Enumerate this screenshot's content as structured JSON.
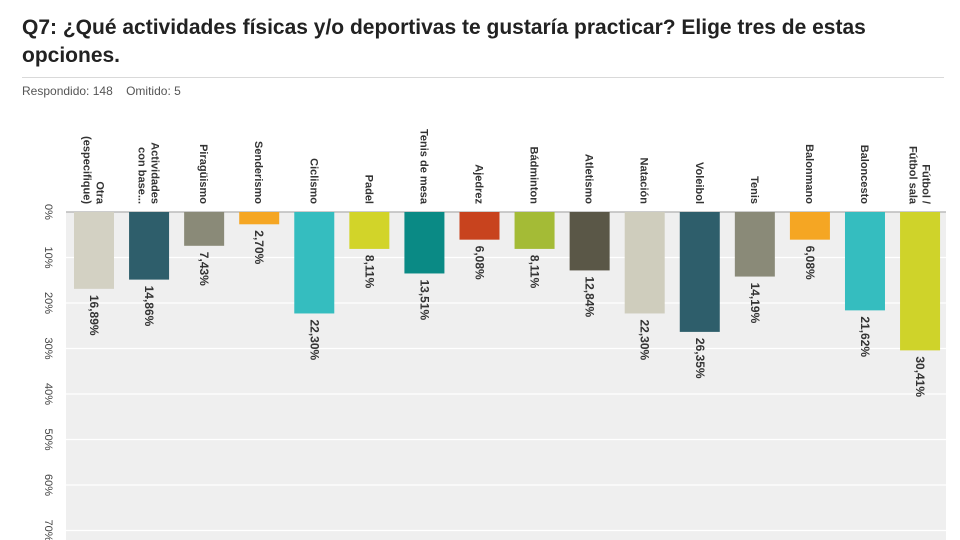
{
  "header": {
    "title": "Q7: ¿Qué actividades físicas y/o deportivas te gustaría practicar? Elige tres de estas opciones.",
    "answered": "Respondido: 148",
    "skipped": "Omitido: 5"
  },
  "chart_data": {
    "type": "bar",
    "orientation": "vertical, rotated view (bars hang down from axis)",
    "title": "",
    "xlabel": "",
    "ylabel": "",
    "ylim": [
      0,
      70
    ],
    "grid": true,
    "legend": "none",
    "categories": [
      [
        "Otra",
        "(especifique)"
      ],
      [
        "Actividades",
        "con base..."
      ],
      [
        "Piragüismo"
      ],
      [
        "Senderismo"
      ],
      [
        "Ciclismo"
      ],
      [
        "Padel"
      ],
      [
        "Tenis de mesa"
      ],
      [
        "Ajedrez"
      ],
      [
        "Bádminton"
      ],
      [
        "Atletismo"
      ],
      [
        "Natación"
      ],
      [
        "Voleibol"
      ],
      [
        "Tenis"
      ],
      [
        "Balonmano"
      ],
      [
        "Baloncesto"
      ],
      [
        "Fútbol /",
        "Fútbol sala"
      ]
    ],
    "values": [
      16.89,
      14.86,
      7.43,
      2.7,
      22.3,
      8.11,
      13.51,
      6.08,
      8.11,
      12.84,
      22.3,
      26.35,
      14.19,
      6.08,
      21.62,
      30.41
    ],
    "value_labels": [
      "16,89%",
      "14,86%",
      "7,43%",
      "2,70%",
      "22,30%",
      "8,11%",
      "13,51%",
      "6,08%",
      "8,11%",
      "12,84%",
      "22,30%",
      "26,35%",
      "14,19%",
      "6,08%",
      "21,62%",
      "30,41%"
    ],
    "tick_labels": [
      "0%",
      "10%",
      "20%",
      "30%",
      "40%",
      "50%",
      "60%",
      "70%"
    ],
    "colors": [
      "#d3d1c3",
      "#2e5e6b",
      "#8a8a78",
      "#f5a623",
      "#35bdbf",
      "#d2d429",
      "#0a8a85",
      "#c8431e",
      "#a4bb36",
      "#5a5747",
      "#cfcdbd",
      "#2e5e6b",
      "#8a8a78",
      "#f5a623",
      "#35bdbf",
      "#cfd32a"
    ]
  }
}
